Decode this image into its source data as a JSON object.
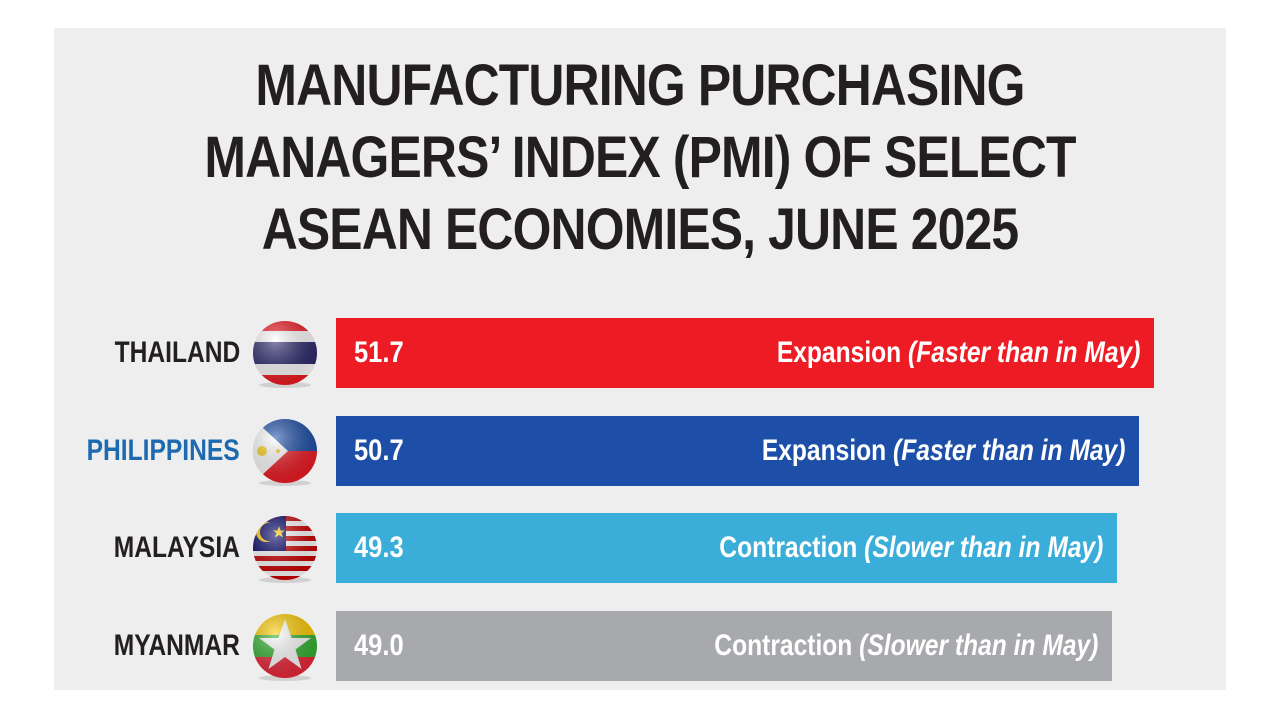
{
  "title_lines": [
    "MANUFACTURING PURCHASING",
    "MANAGERS’ INDEX (PMI) OF SELECT",
    "ASEAN ECONOMIES, JUNE 2025"
  ],
  "colors": {
    "thailand": "#ed1c24",
    "philippines": "#1e4fa8",
    "malaysia": "#3aaed8",
    "myanmar": "#a7a9ac",
    "label_default": "#231f20",
    "label_philippines": "#1e6ab0"
  },
  "chart_data": {
    "type": "bar",
    "orientation": "horizontal",
    "categories": [
      "THAILAND",
      "PHILIPPINES",
      "MALAYSIA",
      "MYANMAR"
    ],
    "values": [
      51.7,
      50.7,
      49.3,
      49.0
    ],
    "value_labels": [
      "51.7",
      "50.7",
      "49.3",
      "49.0"
    ],
    "descriptions": [
      {
        "status": "Expansion",
        "note": "(Faster than in May)"
      },
      {
        "status": "Expansion",
        "note": "(Faster than in May)"
      },
      {
        "status": "Contraction",
        "note": "(Slower than in May)"
      },
      {
        "status": "Contraction",
        "note": "(Slower than in May)"
      }
    ],
    "bar_colors": [
      "#ed1c24",
      "#1e4fa8",
      "#3aaed8",
      "#a7a9ac"
    ],
    "flag_icons": [
      "thailand-flag-icon",
      "philippines-flag-icon",
      "malaysia-flag-icon",
      "myanmar-flag-icon"
    ],
    "title": "MANUFACTURING PURCHASING MANAGERS’ INDEX (PMI) OF SELECT ASEAN ECONOMIES, JUNE 2025",
    "grid": false,
    "legend": "none"
  }
}
